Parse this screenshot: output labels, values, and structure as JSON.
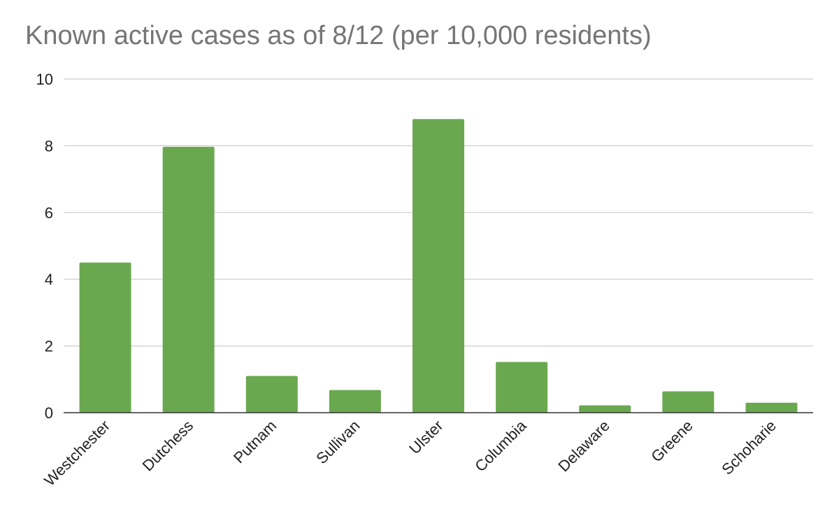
{
  "chart_data": {
    "type": "bar",
    "title": "Known active cases as of 8/12 (per 10,000 residents)",
    "categories": [
      "Westchester",
      "Dutchess",
      "Putnam",
      "Sullivan",
      "Ulster",
      "Columbia",
      "Delaware",
      "Greene",
      "Schoharie"
    ],
    "values": [
      4.5,
      7.97,
      1.1,
      0.68,
      8.8,
      1.52,
      0.22,
      0.64,
      0.3
    ],
    "xlabel": "",
    "ylabel": "",
    "ylim": [
      0,
      10
    ],
    "yticks": [
      "0",
      "2",
      "4",
      "6",
      "8",
      "10"
    ],
    "grid": true,
    "bar_color": "#6aa84f",
    "grid_color": "#cccccc",
    "axis_color": "#333333"
  }
}
